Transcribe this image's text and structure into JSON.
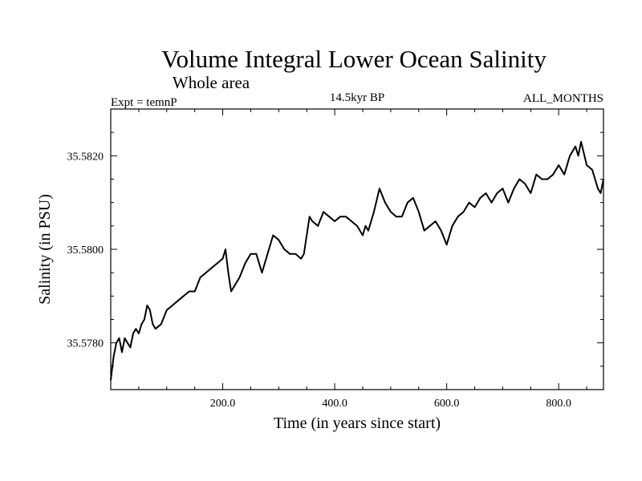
{
  "chart_data": {
    "type": "line",
    "title": "Volume Integral Lower Ocean Salinity",
    "subtitle": "Whole area",
    "header_left": "Expt = temnP",
    "header_center": "14.5kyr BP",
    "header_right": "ALL_MONTHS",
    "xlabel": "Time (in years since start)",
    "ylabel": "Salinity (in PSU)",
    "xlim": [
      0,
      880
    ],
    "ylim": [
      35.577,
      35.583
    ],
    "x_ticks": [
      200,
      400,
      600,
      800
    ],
    "x_tick_labels": [
      "200.0",
      "400.0",
      "600.0",
      "800.0"
    ],
    "y_ticks": [
      35.578,
      35.58,
      35.582
    ],
    "y_tick_labels": [
      "35.5780",
      "35.5800",
      "35.5820"
    ],
    "grid": false,
    "series": [
      {
        "name": "salinity",
        "x": [
          0,
          5,
          10,
          15,
          20,
          25,
          30,
          35,
          40,
          45,
          50,
          55,
          60,
          65,
          70,
          75,
          80,
          90,
          100,
          110,
          120,
          130,
          140,
          150,
          160,
          170,
          180,
          190,
          200,
          205,
          210,
          215,
          220,
          230,
          240,
          250,
          260,
          270,
          280,
          290,
          300,
          310,
          320,
          330,
          340,
          345,
          350,
          355,
          360,
          370,
          380,
          390,
          400,
          410,
          420,
          430,
          440,
          450,
          455,
          460,
          470,
          480,
          490,
          500,
          510,
          520,
          530,
          540,
          550,
          560,
          570,
          580,
          590,
          600,
          610,
          620,
          630,
          640,
          650,
          660,
          670,
          680,
          690,
          700,
          710,
          720,
          730,
          740,
          750,
          760,
          770,
          780,
          790,
          800,
          810,
          820,
          830,
          835,
          840,
          850,
          860,
          865,
          870,
          875,
          880
        ],
        "values": [
          35.5772,
          35.5777,
          35.578,
          35.5781,
          35.5778,
          35.5781,
          35.578,
          35.5779,
          35.5782,
          35.5783,
          35.5782,
          35.5784,
          35.5785,
          35.5788,
          35.5787,
          35.5784,
          35.5783,
          35.5784,
          35.5787,
          35.5788,
          35.5789,
          35.579,
          35.5791,
          35.5791,
          35.5794,
          35.5795,
          35.5796,
          35.5797,
          35.5798,
          35.58,
          35.5795,
          35.5791,
          35.5792,
          35.5794,
          35.5797,
          35.5799,
          35.5799,
          35.5795,
          35.5799,
          35.5803,
          35.5802,
          35.58,
          35.5799,
          35.5799,
          35.5798,
          35.5799,
          35.5803,
          35.5807,
          35.5806,
          35.5805,
          35.5808,
          35.5807,
          35.5806,
          35.5807,
          35.5807,
          35.5806,
          35.5805,
          35.5803,
          35.5805,
          35.5804,
          35.5808,
          35.5813,
          35.581,
          35.5808,
          35.5807,
          35.5807,
          35.581,
          35.5811,
          35.5808,
          35.5804,
          35.5805,
          35.5806,
          35.5804,
          35.5801,
          35.5805,
          35.5807,
          35.5808,
          35.581,
          35.5809,
          35.5811,
          35.5812,
          35.581,
          35.5812,
          35.5813,
          35.581,
          35.5813,
          35.5815,
          35.5814,
          35.5812,
          35.5816,
          35.5815,
          35.5815,
          35.5816,
          35.5818,
          35.5816,
          35.582,
          35.5822,
          35.582,
          35.5823,
          35.5818,
          35.5817,
          35.5815,
          35.5813,
          35.5812,
          35.5815
        ]
      }
    ]
  }
}
